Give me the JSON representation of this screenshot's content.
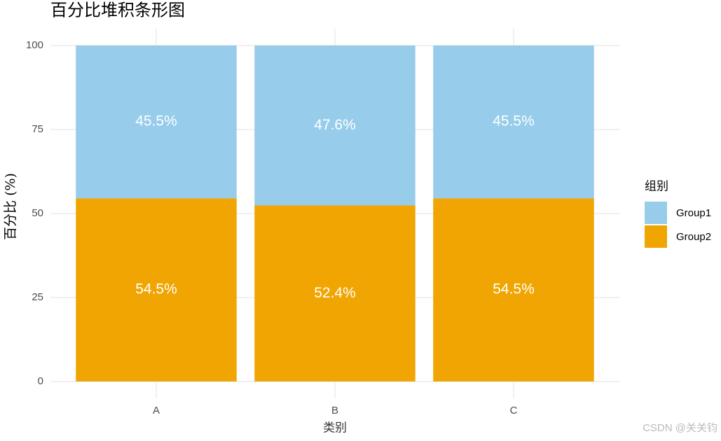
{
  "chart_data": {
    "type": "stacked_bar",
    "title": "百分比堆积条形图",
    "x_label": "类别",
    "y_label": "百分比 (%)",
    "categories": [
      "A",
      "B",
      "C"
    ],
    "series": [
      {
        "name": "Group1",
        "color": "#97cceb",
        "values": [
          45.5,
          47.6,
          45.5
        ],
        "value_labels": [
          "45.5%",
          "47.6%",
          "45.5%"
        ]
      },
      {
        "name": "Group2",
        "color": "#f0a502",
        "values": [
          54.5,
          52.4,
          54.5
        ],
        "value_labels": [
          "54.5%",
          "52.4%",
          "54.5%"
        ]
      }
    ],
    "ylim": [
      -5,
      105
    ],
    "yticks": [
      0,
      25,
      50,
      75,
      100
    ],
    "grid": true,
    "legend_title": "组别",
    "legend_position": "right"
  },
  "watermark": "CSDN @关关钧"
}
